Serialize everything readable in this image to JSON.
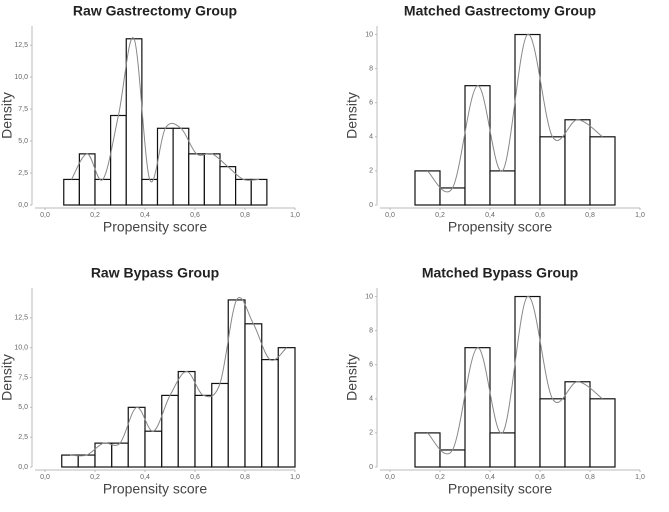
{
  "chart_data": [
    {
      "type": "histogram",
      "title": "Raw Gastrectomy Group",
      "x_label": "Propensity score",
      "y_label": "Density",
      "bins": [
        0.075,
        0.1375,
        0.2,
        0.2625,
        0.325,
        0.3875,
        0.45,
        0.5125,
        0.575,
        0.6375,
        0.7,
        0.7625,
        0.825,
        0.8875
      ],
      "values": [
        2,
        4,
        2,
        7,
        13,
        2,
        6,
        6,
        4,
        4,
        3,
        2,
        2
      ],
      "color": "#ffffff",
      "xlim": [
        -0.04,
        1.0
      ],
      "xticks": [
        {
          "value": 0,
          "label": "0,0"
        },
        {
          "value": 0.2,
          "label": "0,2"
        },
        {
          "value": 0.4,
          "label": "0,4"
        },
        {
          "value": 0.6,
          "label": "0,6"
        },
        {
          "value": 0.8,
          "label": "0,8"
        },
        {
          "value": 1.0,
          "label": "1,0"
        }
      ],
      "ylim": [
        0,
        14
      ],
      "yticks": [
        {
          "value": 0,
          "label": "0,0"
        },
        {
          "value": 2.5,
          "label": "2,5"
        },
        {
          "value": 5,
          "label": "5,0"
        },
        {
          "value": 7.5,
          "label": "7,5"
        },
        {
          "value": 10,
          "label": "10,0"
        },
        {
          "value": 12.5,
          "label": "12,5"
        }
      ]
    },
    {
      "type": "histogram",
      "title": "Matched Gastrectomy Group",
      "x_label": "Propensity score",
      "y_label": "Density",
      "bins": [
        0.1,
        0.2,
        0.3,
        0.4,
        0.5,
        0.6,
        0.7,
        0.8,
        0.9
      ],
      "values": [
        2,
        1,
        7,
        2,
        10,
        4,
        5,
        4
      ],
      "color": "#ffffff",
      "xlim": [
        -0.04,
        1.0
      ],
      "xticks": [
        {
          "value": 0,
          "label": "0,0"
        },
        {
          "value": 0.2,
          "label": "0,2"
        },
        {
          "value": 0.4,
          "label": "0,4"
        },
        {
          "value": 0.6,
          "label": "0,6"
        },
        {
          "value": 0.8,
          "label": "0,8"
        },
        {
          "value": 1.0,
          "label": "1,0"
        }
      ],
      "ylim": [
        0,
        10.5
      ],
      "yticks": [
        0,
        2,
        4,
        6,
        8,
        10
      ]
    },
    {
      "type": "histogram",
      "title": "Raw Bypass Group",
      "x_label": "Propensity score",
      "y_label": "Density",
      "bins": [
        0.067,
        0.133,
        0.2,
        0.267,
        0.333,
        0.4,
        0.467,
        0.533,
        0.6,
        0.667,
        0.733,
        0.8,
        0.867,
        0.933,
        1.0
      ],
      "values": [
        1,
        1,
        2,
        2,
        5,
        3,
        6,
        8,
        6,
        7,
        14,
        12,
        9,
        10
      ],
      "color": "#ffffff",
      "xlim": [
        -0.04,
        1.0
      ],
      "xticks": [
        {
          "value": 0,
          "label": "0,0"
        },
        {
          "value": 0.2,
          "label": "0,2"
        },
        {
          "value": 0.4,
          "label": "0,4"
        },
        {
          "value": 0.6,
          "label": "0,6"
        },
        {
          "value": 0.8,
          "label": "0,8"
        },
        {
          "value": 1.0,
          "label": "1,0"
        }
      ],
      "ylim": [
        0,
        15
      ],
      "yticks": [
        {
          "value": 0,
          "label": "0,0"
        },
        {
          "value": 2.5,
          "label": "2,5"
        },
        {
          "value": 5,
          "label": "5,0"
        },
        {
          "value": 7.5,
          "label": "7,5"
        },
        {
          "value": 10,
          "label": "10,0"
        },
        {
          "value": 12.5,
          "label": "12,5"
        }
      ]
    },
    {
      "type": "histogram",
      "title": "Matched Bypass Group",
      "x_label": "Propensity score",
      "y_label": "Density",
      "bins": [
        0.1,
        0.2,
        0.3,
        0.4,
        0.5,
        0.6,
        0.7,
        0.8,
        0.9
      ],
      "values": [
        2,
        1,
        7,
        2,
        10,
        4,
        5,
        4
      ],
      "color": "#ffffff",
      "xlim": [
        -0.04,
        1.0
      ],
      "xticks": [
        {
          "value": 0,
          "label": "0,0"
        },
        {
          "value": 0.2,
          "label": "0,2"
        },
        {
          "value": 0.4,
          "label": "0,4"
        },
        {
          "value": 0.6,
          "label": "0,6"
        },
        {
          "value": 0.8,
          "label": "0,8"
        },
        {
          "value": 1.0,
          "label": "1,0"
        }
      ],
      "ylim": [
        0,
        10.5
      ],
      "yticks": [
        0,
        2,
        4,
        6,
        8,
        10
      ]
    }
  ]
}
